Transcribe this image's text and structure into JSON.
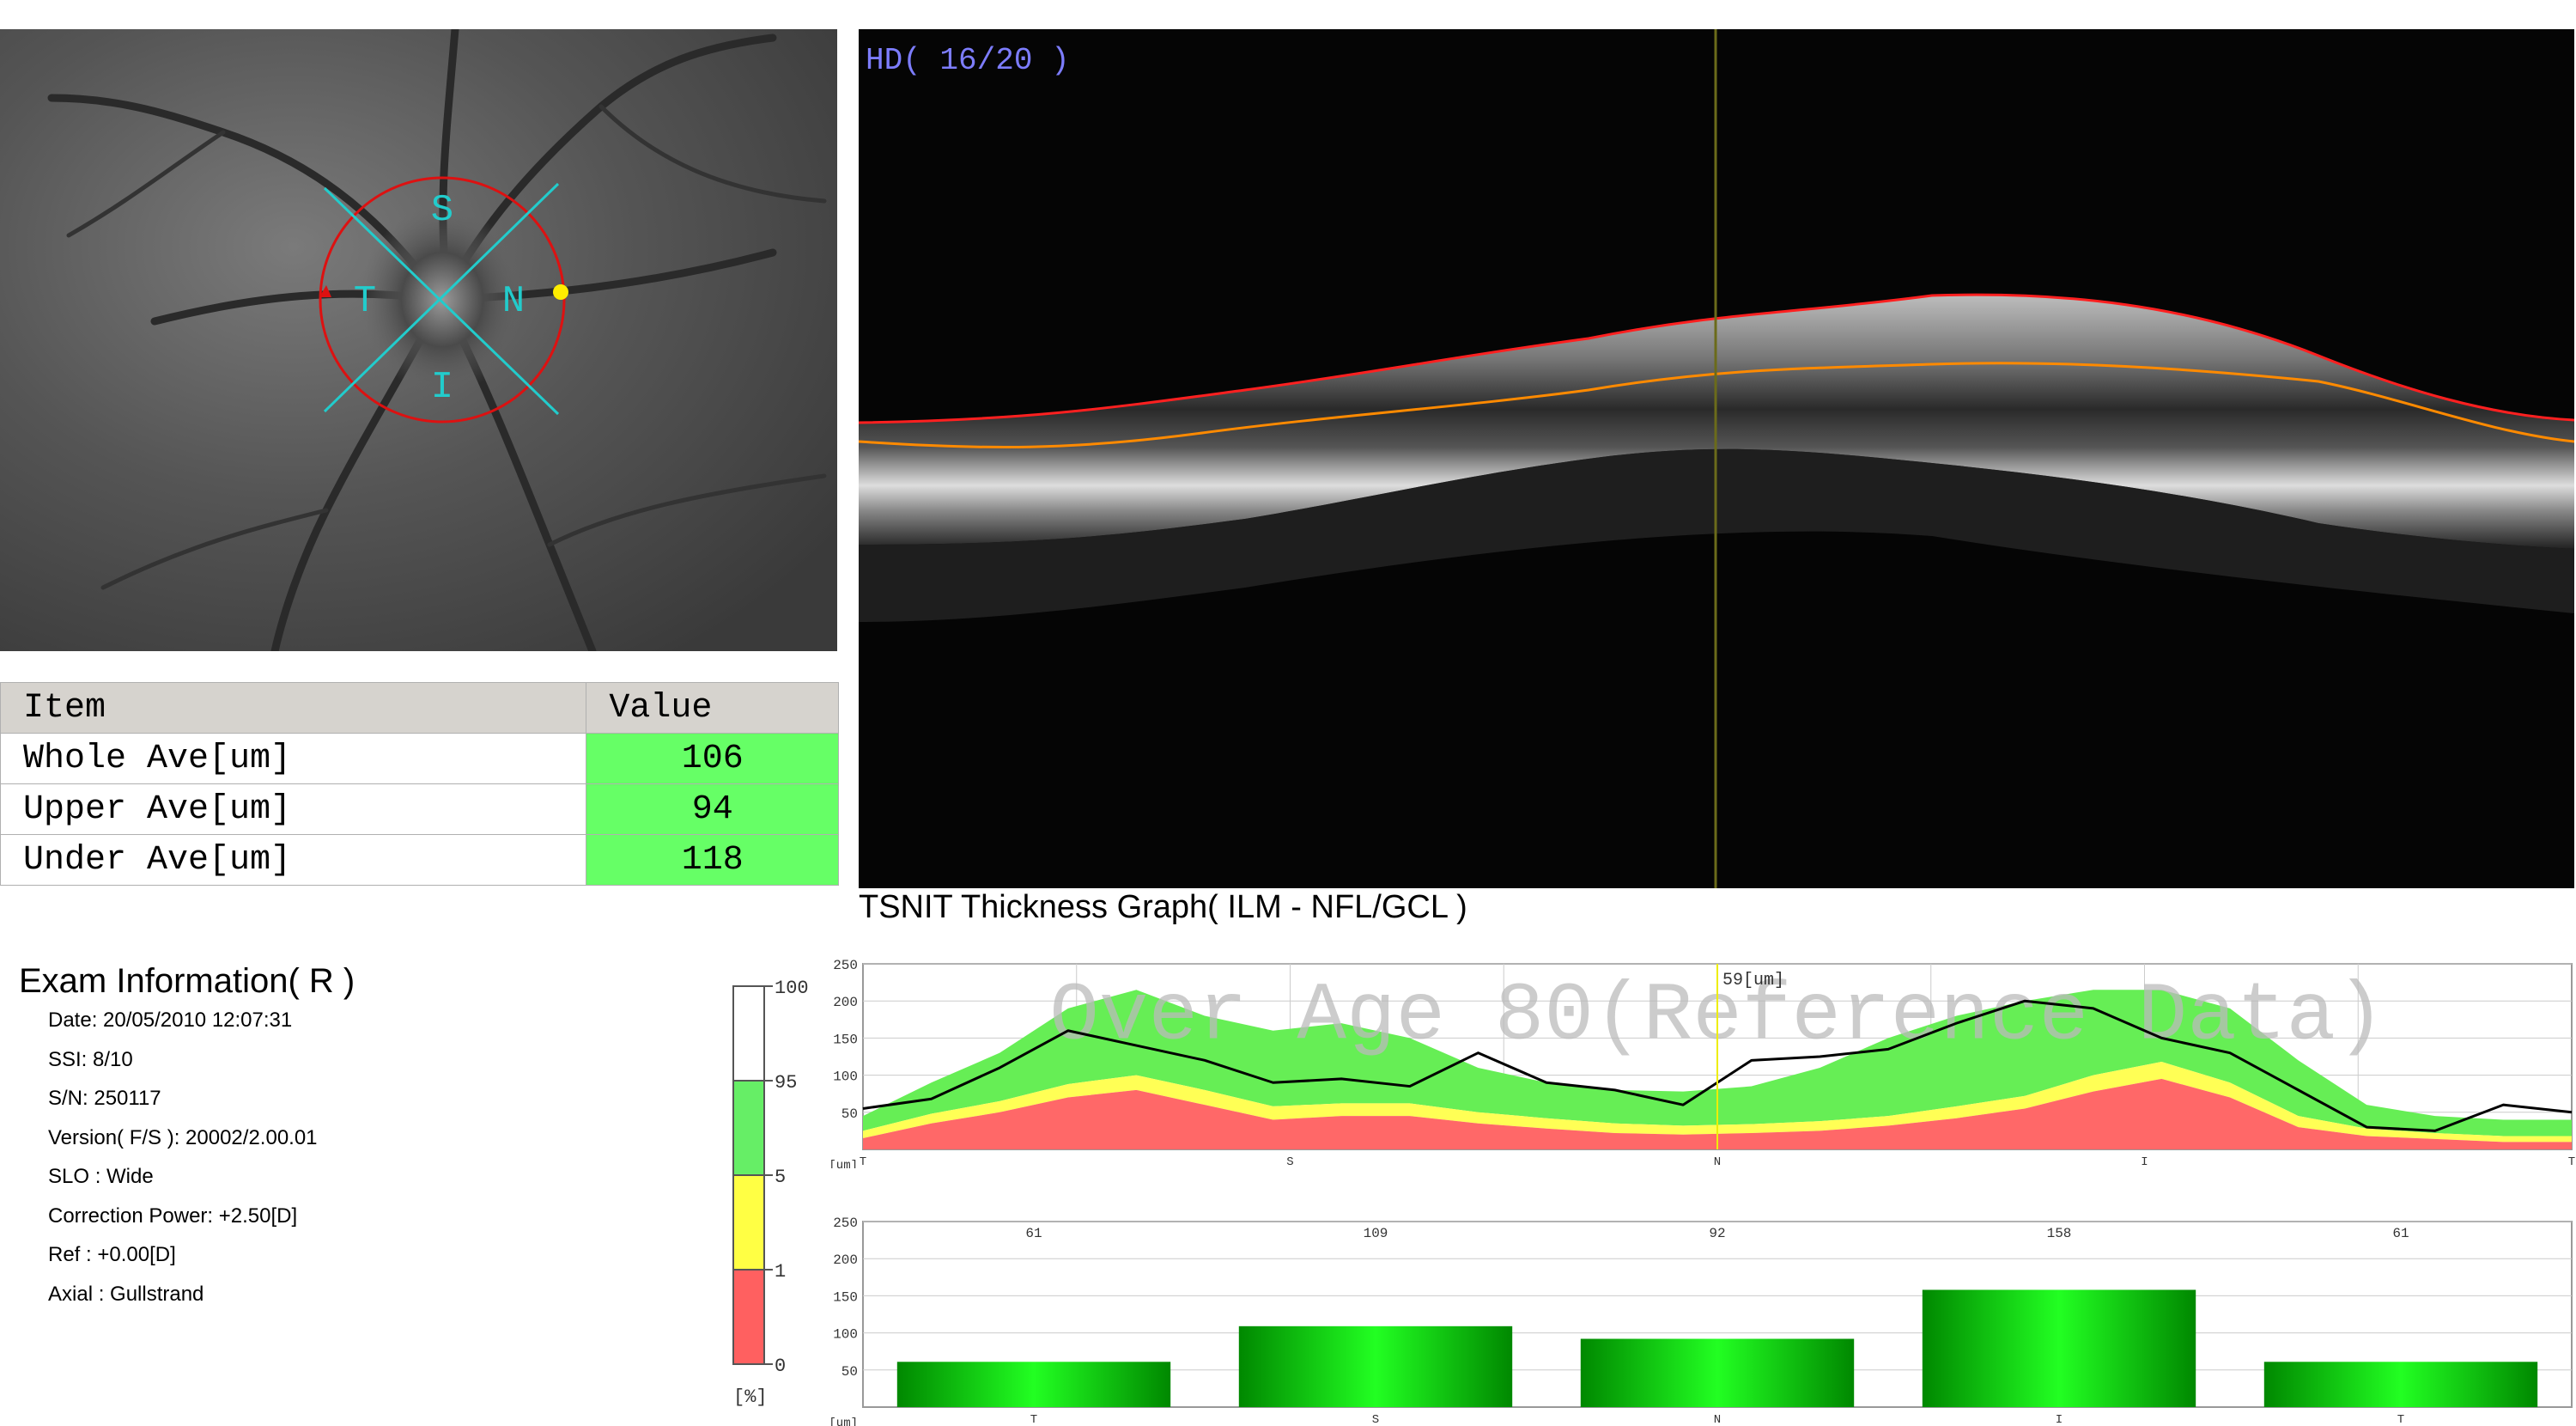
{
  "fundus": {
    "quadrant_labels": {
      "superior": "S",
      "inferior": "I",
      "temporal": "T",
      "nasal": "N"
    }
  },
  "table": {
    "headers": {
      "item": "Item",
      "value": "Value"
    },
    "rows": [
      {
        "label": "Whole Ave[um]",
        "value": "106"
      },
      {
        "label": "Upper Ave[um]",
        "value": "94"
      },
      {
        "label": "Under Ave[um]",
        "value": "118"
      }
    ]
  },
  "oct": {
    "label": "HD( 16/20 )",
    "colors": {
      "ilm": "#ff2020",
      "nfl": "#ff8a00",
      "cursor": "#6b6b1a"
    }
  },
  "tsnit_title": "TSNIT Thickness Graph( ILM - NFL/GCL )",
  "exam": {
    "title": "Exam Information( R )",
    "items": [
      "Date: 20/05/2010 12:07:31",
      "SSI:  8/10",
      "S/N:  250117",
      "Version( F/S ): 20002/2.00.01",
      "SLO : Wide",
      "Correction Power: +2.50[D]",
      "Ref : +0.00[D]",
      "Axial : Gullstrand"
    ]
  },
  "chart_data": [
    {
      "type": "table",
      "name": "percentile_scale",
      "ticks": [
        "100",
        "95",
        "5",
        "1",
        "0"
      ],
      "unit": "[%]",
      "colors": {
        "white": "#ffffff",
        "green": "#66ee66",
        "yellow": "#ffff44",
        "red": "#ff6060"
      }
    },
    {
      "type": "area",
      "name": "tsnit_profile",
      "watermark": "Over Age 80(Reference Data)",
      "ylim": [
        0,
        250
      ],
      "yticks": [
        "250",
        "200",
        "150",
        "100",
        "50"
      ],
      "yunit": "[um]",
      "xticks": [
        "T",
        "S",
        "N",
        "I",
        "T"
      ],
      "cursor_label": "59[um]",
      "cursor_x": 0.5,
      "colors": {
        "green": "#66ee55",
        "yellow": "#ffff55",
        "red": "#ff6868",
        "line": "#000000",
        "cursor": "#eeee00"
      },
      "x": [
        0,
        0.04,
        0.08,
        0.12,
        0.16,
        0.2,
        0.24,
        0.28,
        0.32,
        0.36,
        0.4,
        0.44,
        0.48,
        0.52,
        0.56,
        0.6,
        0.64,
        0.68,
        0.72,
        0.76,
        0.8,
        0.84,
        0.88,
        0.92,
        0.96,
        1
      ],
      "boundary_red": [
        15,
        35,
        50,
        70,
        80,
        60,
        40,
        45,
        45,
        35,
        28,
        22,
        20,
        22,
        25,
        32,
        42,
        55,
        78,
        95,
        70,
        30,
        18,
        14,
        10,
        10
      ],
      "boundary_yellow": [
        25,
        48,
        65,
        88,
        100,
        80,
        58,
        62,
        62,
        50,
        42,
        35,
        32,
        34,
        38,
        45,
        58,
        72,
        100,
        118,
        90,
        45,
        28,
        22,
        18,
        18
      ],
      "boundary_green": [
        45,
        90,
        130,
        190,
        215,
        180,
        160,
        170,
        150,
        110,
        90,
        80,
        78,
        85,
        110,
        150,
        180,
        200,
        215,
        215,
        190,
        120,
        60,
        45,
        40,
        40
      ],
      "thickness": [
        55,
        68,
        110,
        160,
        140,
        120,
        90,
        95,
        85,
        130,
        90,
        80,
        60,
        120,
        125,
        135,
        170,
        200,
        190,
        150,
        130,
        80,
        30,
        25,
        60,
        50
      ]
    },
    {
      "type": "bar",
      "name": "tsnit_sectors",
      "categories": [
        "T",
        "S",
        "N",
        "I",
        "T"
      ],
      "values": [
        61,
        109,
        92,
        158,
        61
      ],
      "ylim": [
        0,
        250
      ],
      "yticks": [
        "250",
        "200",
        "150",
        "100",
        "50"
      ],
      "yunit": "[um]",
      "bar_color": "#00c000"
    }
  ]
}
